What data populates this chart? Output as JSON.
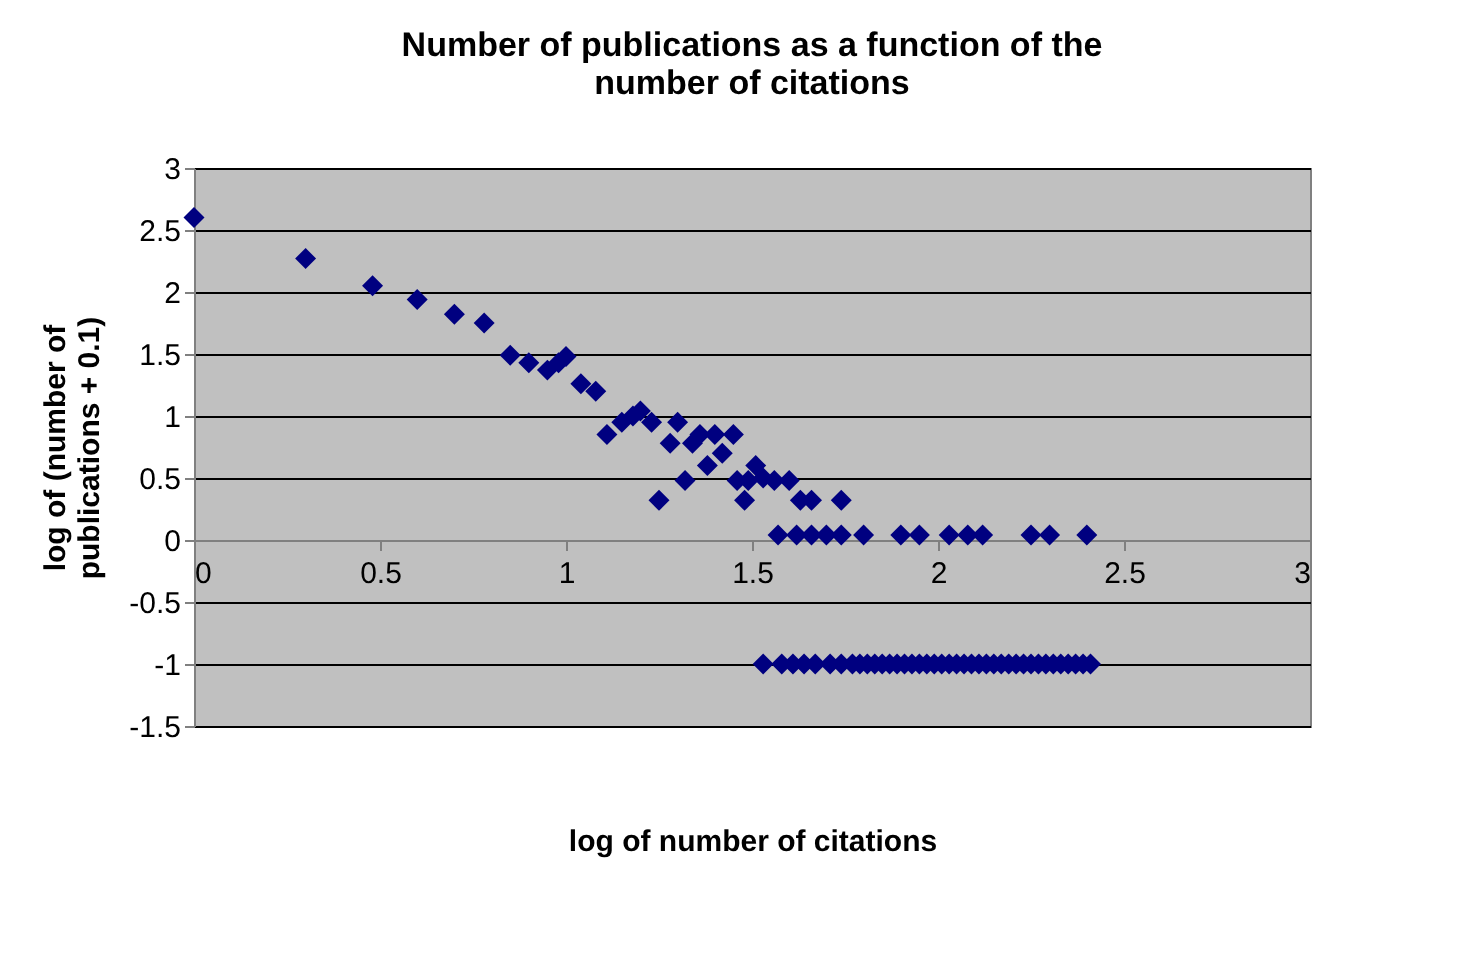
{
  "chart_data": {
    "type": "scatter",
    "title": "Number of publications as a function of the number of citations",
    "xlabel": "log of number of citations",
    "ylabel": "log of (number of publications + 0.1)",
    "x": [
      0,
      0.3,
      0.48,
      0.6,
      0.7,
      0.78,
      0.85,
      0.9,
      0.95,
      0.98,
      1.0,
      1.04,
      1.08,
      1.11,
      1.15,
      1.18,
      1.2,
      1.23,
      1.25,
      1.28,
      1.3,
      1.32,
      1.34,
      1.36,
      1.38,
      1.4,
      1.42,
      1.45,
      1.46,
      1.48,
      1.49,
      1.51,
      1.53,
      1.56,
      1.6,
      1.63,
      1.66,
      1.74,
      1.57,
      1.62,
      1.66,
      1.7,
      1.74,
      1.8,
      1.9,
      1.95,
      2.03,
      2.08,
      2.12,
      2.25,
      2.3,
      2.4,
      1.53,
      1.58,
      1.61,
      1.64,
      1.67,
      1.71,
      1.74,
      1.77,
      1.79,
      1.81,
      1.83,
      1.85,
      1.87,
      1.89,
      1.91,
      1.93,
      1.95,
      1.97,
      1.99,
      2.01,
      2.03,
      2.05,
      2.07,
      2.09,
      2.11,
      2.13,
      2.15,
      2.17,
      2.19,
      2.21,
      2.23,
      2.25,
      2.27,
      2.29,
      2.31,
      2.33,
      2.35,
      2.37,
      2.39,
      2.41
    ],
    "series": [
      {
        "color": "#000080",
        "values": [
          2.6,
          2.27,
          2.05,
          1.94,
          1.82,
          1.75,
          1.49,
          1.43,
          1.37,
          1.43,
          1.48,
          1.26,
          1.2,
          0.85,
          0.95,
          1.0,
          1.04,
          0.95,
          0.32,
          0.78,
          0.95,
          0.48,
          0.78,
          0.85,
          0.6,
          0.85,
          0.7,
          0.85,
          0.48,
          0.32,
          0.48,
          0.6,
          0.5,
          0.48,
          0.48,
          0.32,
          0.32,
          0.32,
          0.04,
          0.04,
          0.04,
          0.04,
          0.04,
          0.04,
          0.04,
          0.04,
          0.04,
          0.04,
          0.04,
          0.04,
          0.04,
          0.04,
          -1,
          -1,
          -1,
          -1,
          -1,
          -1,
          -1,
          -1,
          -1,
          -1,
          -1,
          -1,
          -1,
          -1,
          -1,
          -1,
          -1,
          -1,
          -1,
          -1,
          -1,
          -1,
          -1,
          -1,
          -1,
          -1,
          -1,
          -1,
          -1,
          -1,
          -1,
          -1,
          -1,
          -1,
          -1,
          -1,
          -1,
          -1,
          -1,
          -1
        ]
      }
    ],
    "xlim": [
      0,
      3
    ],
    "xticks": [
      0,
      0.5,
      1,
      1.5,
      2,
      2.5,
      3
    ],
    "ylim": [
      -1.5,
      3
    ],
    "yticks": [
      -1.5,
      -1,
      -0.5,
      0,
      0.5,
      1,
      1.5,
      2,
      2.5,
      3
    ],
    "grid": "y",
    "marker": "diamond"
  }
}
